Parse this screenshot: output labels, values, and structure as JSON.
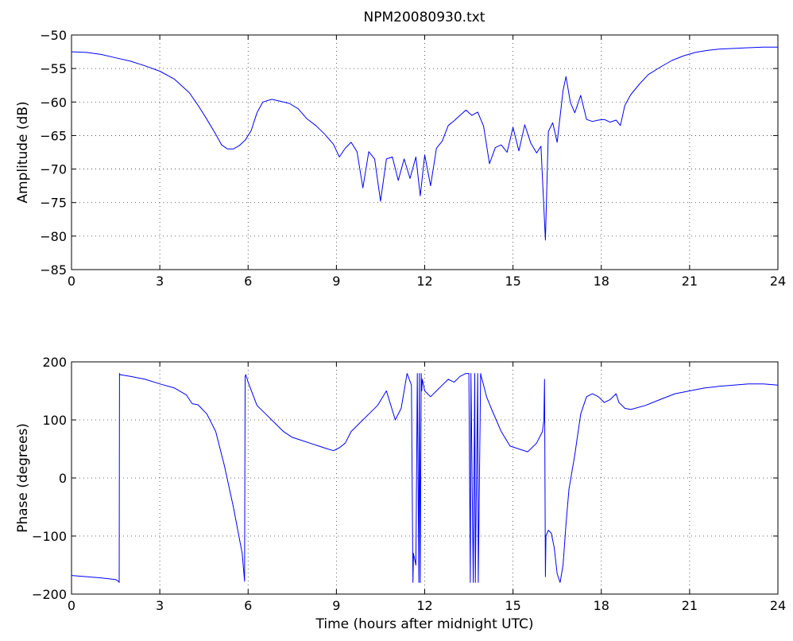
{
  "figure": {
    "title": "NPM20080930.txt"
  },
  "colors": {
    "series": "#0000ff",
    "axes": "#000000",
    "background": "#ffffff"
  },
  "chart_data": [
    {
      "type": "line",
      "title": "NPM20080930.txt",
      "xlabel": "",
      "ylabel": "Amplitude (dB)",
      "xlim": [
        0,
        24
      ],
      "ylim": [
        -85,
        -50
      ],
      "xticks": [
        0,
        3,
        6,
        9,
        12,
        15,
        18,
        21,
        24
      ],
      "yticks": [
        -85,
        -80,
        -75,
        -70,
        -65,
        -60,
        -55,
        -50
      ],
      "xtick_labels": [
        "0",
        "3",
        "6",
        "9",
        "12",
        "15",
        "18",
        "21",
        "24"
      ],
      "ytick_labels": [
        "−85",
        "−80",
        "−75",
        "−70",
        "−65",
        "−60",
        "−55",
        "−50"
      ],
      "grid": true,
      "series": [
        {
          "x": [
            0,
            0.5,
            1,
            1.5,
            2,
            2.5,
            3,
            3.5,
            4,
            4.3,
            4.6,
            4.9,
            5.1,
            5.3,
            5.5,
            5.7,
            5.9,
            6.1,
            6.3,
            6.5,
            6.8,
            7.1,
            7.4,
            7.7,
            8.0,
            8.3,
            8.6,
            8.9,
            9.1,
            9.3,
            9.5,
            9.7,
            9.9,
            10.1,
            10.3,
            10.5,
            10.7,
            10.9,
            11.1,
            11.3,
            11.5,
            11.7,
            11.85,
            12.0,
            12.2,
            12.4,
            12.6,
            12.8,
            13.0,
            13.2,
            13.4,
            13.6,
            13.8,
            14.0,
            14.2,
            14.4,
            14.6,
            14.8,
            15.0,
            15.2,
            15.4,
            15.6,
            15.8,
            15.95,
            16.1,
            16.2,
            16.35,
            16.5,
            16.7,
            16.8,
            16.95,
            17.1,
            17.3,
            17.5,
            17.7,
            17.9,
            18.1,
            18.3,
            18.5,
            18.65,
            18.8,
            19.0,
            19.3,
            19.6,
            20.0,
            20.4,
            20.8,
            21.2,
            21.6,
            22.0,
            22.5,
            23.0,
            23.5,
            24.0
          ],
          "y": [
            -52.5,
            -52.6,
            -52.9,
            -53.4,
            -53.9,
            -54.6,
            -55.4,
            -56.6,
            -58.6,
            -60.5,
            -62.6,
            -64.8,
            -66.4,
            -67.0,
            -67.0,
            -66.5,
            -65.7,
            -64.3,
            -61.6,
            -60.0,
            -59.6,
            -59.9,
            -60.2,
            -61.0,
            -62.5,
            -63.5,
            -64.8,
            -66.3,
            -68.2,
            -66.9,
            -66.0,
            -67.4,
            -72.8,
            -67.4,
            -68.5,
            -74.8,
            -68.5,
            -68.2,
            -71.7,
            -68.5,
            -71.4,
            -68.2,
            -74.0,
            -67.9,
            -72.5,
            -66.9,
            -65.8,
            -63.5,
            -62.8,
            -62.0,
            -61.2,
            -62.0,
            -61.5,
            -63.6,
            -69.2,
            -66.8,
            -66.4,
            -67.5,
            -63.8,
            -67.3,
            -63.4,
            -66.1,
            -67.6,
            -66.6,
            -80.6,
            -64.4,
            -63.1,
            -66.0,
            -58.3,
            -56.2,
            -60.1,
            -61.6,
            -59.0,
            -62.6,
            -62.9,
            -62.7,
            -62.6,
            -63.0,
            -62.7,
            -63.5,
            -60.5,
            -58.9,
            -57.3,
            -55.9,
            -54.8,
            -53.8,
            -53.1,
            -52.6,
            -52.3,
            -52.1,
            -52.0,
            -51.9,
            -51.8,
            -51.8
          ]
        }
      ]
    },
    {
      "type": "line",
      "title": "",
      "xlabel": "Time (hours after midnight UTC)",
      "ylabel": "Phase (degrees)",
      "xlim": [
        0,
        24
      ],
      "ylim": [
        -200,
        200
      ],
      "xticks": [
        0,
        3,
        6,
        9,
        12,
        15,
        18,
        21,
        24
      ],
      "yticks": [
        -200,
        -100,
        0,
        100,
        200
      ],
      "xtick_labels": [
        "0",
        "3",
        "6",
        "9",
        "12",
        "15",
        "18",
        "21",
        "24"
      ],
      "ytick_labels": [
        "−200",
        "−100",
        "0",
        "100",
        "200"
      ],
      "grid": true,
      "series": [
        {
          "x": [
            0,
            0.5,
            1,
            1.5,
            1.6,
            1.62,
            1.63,
            1.65,
            2.0,
            2.5,
            3.0,
            3.5,
            3.9,
            4.1,
            4.3,
            4.6,
            4.9,
            5.2,
            5.5,
            5.8,
            5.88,
            5.9,
            5.92,
            6.0,
            6.3,
            6.6,
            6.9,
            7.2,
            7.5,
            7.8,
            8.1,
            8.4,
            8.7,
            8.9,
            9.1,
            9.3,
            9.5,
            9.8,
            10.1,
            10.4,
            10.7,
            11.0,
            11.2,
            11.4,
            11.55,
            11.6,
            11.62,
            11.7,
            11.75,
            11.8,
            11.82,
            11.85,
            11.88,
            11.9,
            11.92,
            12.0,
            12.2,
            12.4,
            12.6,
            12.8,
            13.0,
            13.2,
            13.4,
            13.5,
            13.55,
            13.57,
            13.65,
            13.7,
            13.72,
            13.8,
            13.82,
            13.9,
            13.92,
            14.0,
            14.1,
            14.3,
            14.6,
            14.9,
            15.2,
            15.5,
            15.8,
            16.0,
            16.05,
            16.07,
            16.1,
            16.12,
            16.2,
            16.3,
            16.4,
            16.5,
            16.6,
            16.7,
            16.8,
            16.9,
            17.1,
            17.3,
            17.5,
            17.7,
            17.9,
            18.1,
            18.3,
            18.5,
            18.6,
            18.8,
            19.0,
            19.5,
            20.0,
            20.5,
            21.0,
            21.5,
            22.0,
            22.5,
            23.0,
            23.5,
            24.0
          ],
          "y": [
            -168,
            -170,
            -172,
            -175,
            -178,
            -180,
            180,
            178,
            175,
            170,
            162,
            155,
            143,
            128,
            126,
            110,
            80,
            20,
            -50,
            -130,
            -178,
            175,
            178,
            165,
            125,
            110,
            95,
            80,
            70,
            65,
            60,
            55,
            50,
            47,
            52,
            60,
            80,
            95,
            110,
            125,
            150,
            100,
            120,
            180,
            160,
            -180,
            -130,
            -150,
            180,
            -180,
            180,
            -180,
            180,
            150,
            170,
            150,
            140,
            150,
            160,
            170,
            165,
            175,
            180,
            180,
            -180,
            180,
            -180,
            180,
            -180,
            180,
            -180,
            180,
            175,
            160,
            140,
            115,
            80,
            55,
            50,
            45,
            60,
            80,
            100,
            170,
            -170,
            -100,
            -90,
            -95,
            -120,
            -165,
            -180,
            -150,
            -80,
            -20,
            40,
            110,
            140,
            145,
            140,
            130,
            135,
            145,
            130,
            120,
            118,
            125,
            135,
            145,
            150,
            155,
            158,
            160,
            162,
            162,
            160
          ]
        }
      ]
    }
  ]
}
